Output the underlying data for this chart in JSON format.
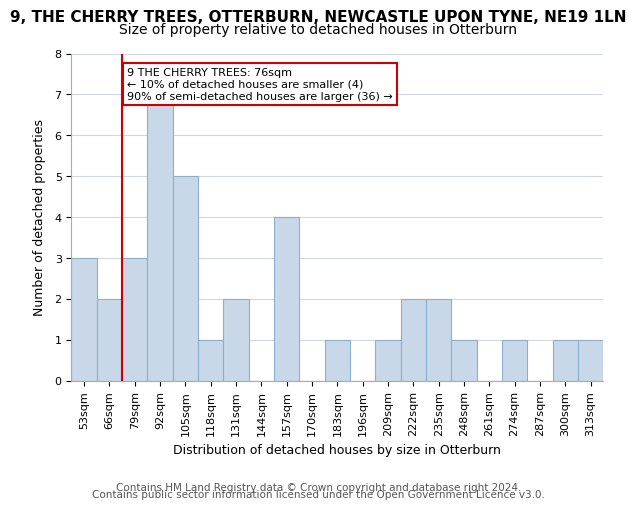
{
  "title_line1": "9, THE CHERRY TREES, OTTERBURN, NEWCASTLE UPON TYNE, NE19 1LN",
  "title_line2": "Size of property relative to detached houses in Otterburn",
  "xlabel": "Distribution of detached houses by size in Otterburn",
  "ylabel": "Number of detached properties",
  "bin_labels": [
    "53sqm",
    "66sqm",
    "79sqm",
    "92sqm",
    "105sqm",
    "118sqm",
    "131sqm",
    "144sqm",
    "157sqm",
    "170sqm",
    "183sqm",
    "196sqm",
    "209sqm",
    "222sqm",
    "235sqm",
    "248sqm",
    "261sqm",
    "274sqm",
    "287sqm",
    "300sqm",
    "313sqm"
  ],
  "bar_heights": [
    3,
    2,
    3,
    7,
    5,
    1,
    2,
    0,
    4,
    0,
    1,
    0,
    1,
    2,
    2,
    1,
    0,
    1,
    0,
    1,
    1
  ],
  "bar_color": "#c8d8e8",
  "bar_edge_color": "#8ab0d0",
  "property_line_color": "#cc0000",
  "property_line_label_idx": 2,
  "annotation_title": "9 THE CHERRY TREES: 76sqm",
  "annotation_line1": "← 10% of detached houses are smaller (4)",
  "annotation_line2": "90% of semi-detached houses are larger (36) →",
  "annotation_box_color": "#ffffff",
  "annotation_box_edge_color": "#cc0000",
  "ylim": [
    0,
    8
  ],
  "yticks": [
    0,
    1,
    2,
    3,
    4,
    5,
    6,
    7,
    8
  ],
  "footer_line1": "Contains HM Land Registry data © Crown copyright and database right 2024.",
  "footer_line2": "Contains public sector information licensed under the Open Government Licence v3.0.",
  "background_color": "#ffffff",
  "grid_color": "#d0d8e0",
  "title_fontsize": 11,
  "subtitle_fontsize": 10,
  "axis_label_fontsize": 9,
  "tick_fontsize": 8,
  "footer_fontsize": 7.5
}
